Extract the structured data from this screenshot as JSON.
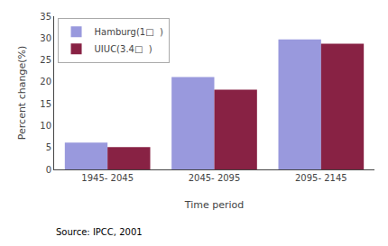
{
  "chart_data": {
    "type": "bar",
    "categories": [
      "1945- 2045",
      "2045- 2095",
      "2095- 2145"
    ],
    "series": [
      {
        "name": "Hamburg(1□  )",
        "color": "#9999dd",
        "values": [
          6.1,
          21.1,
          29.7
        ]
      },
      {
        "name": "UIUC(3.4□  )",
        "color": "#882244",
        "values": [
          5.1,
          18.2,
          28.7
        ]
      }
    ],
    "xlabel": "Time period",
    "ylabel": "Percent change(%)",
    "ylim": [
      0,
      35
    ],
    "yticks": [
      0,
      5,
      10,
      15,
      20,
      25,
      30,
      35
    ],
    "grid": false,
    "legend": "upper left",
    "annotations": [
      "Source: IPCC, 2001"
    ]
  }
}
